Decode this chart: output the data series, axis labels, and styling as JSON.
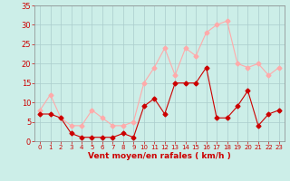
{
  "hours": [
    0,
    1,
    2,
    3,
    4,
    5,
    6,
    7,
    8,
    9,
    10,
    11,
    12,
    13,
    14,
    15,
    16,
    17,
    18,
    19,
    20,
    21,
    22,
    23
  ],
  "wind_avg": [
    7,
    7,
    6,
    2,
    1,
    1,
    1,
    1,
    2,
    1,
    9,
    11,
    7,
    15,
    15,
    15,
    19,
    6,
    6,
    9,
    13,
    4,
    7,
    8
  ],
  "wind_gust": [
    8,
    12,
    6,
    4,
    4,
    8,
    6,
    4,
    4,
    5,
    15,
    19,
    24,
    17,
    24,
    22,
    28,
    30,
    31,
    20,
    19,
    20,
    17,
    19
  ],
  "wind_avg_color": "#cc0000",
  "wind_gust_color": "#ffaaaa",
  "bg_color": "#cceee8",
  "grid_color": "#aacccc",
  "xlabel": "Vent moyen/en rafales ( km/h )",
  "xlabel_color": "#cc0000",
  "tick_color": "#cc0000",
  "ylim": [
    0,
    35
  ],
  "yticks": [
    0,
    5,
    10,
    15,
    20,
    25,
    30,
    35
  ],
  "xlim": [
    -0.5,
    23.5
  ]
}
